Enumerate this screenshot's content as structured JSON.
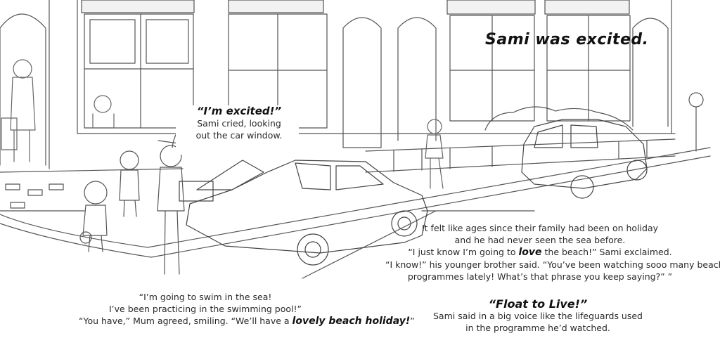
{
  "title": "Sami was excited.",
  "bubble": {
    "quote": "“I’m excited!”",
    "line1": "Sami cried, looking",
    "line2": "out the car window."
  },
  "right_text": {
    "line1": "It felt like ages since their family had been on holiday",
    "line2": "and he had never seen the sea before.",
    "line3_pre": "“I just know I’m going to ",
    "line3_em": "love",
    "line3_post": " the beach!” Sami exclaimed.",
    "line4": "“I know!” his younger brother said. “You’ve been watching sooo many beach",
    "line5": "programmes lately! What’s that phrase you keep saying?” ”"
  },
  "left_text": {
    "line1": "“I’m going to swim in the sea!",
    "line2": "I’ve been practicing in the swimming pool!”",
    "line3_pre": "“You have,” Mum agreed, smiling. “We’ll have a ",
    "line3_em": "lovely beach holiday!",
    "line3_post": "”"
  },
  "float_text": {
    "quote": "“Float to Live!”",
    "line1": "Sami said in a big voice like the lifeguards used",
    "line2": "in the programme he’d watched."
  }
}
